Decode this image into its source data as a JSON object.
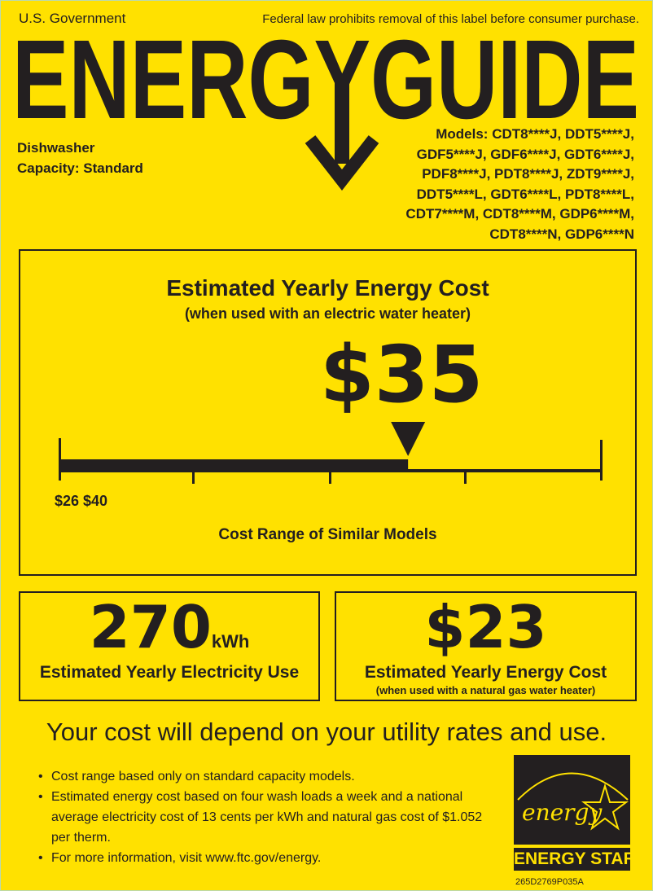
{
  "header": {
    "left": "U.S. Government",
    "right": "Federal law prohibits removal of this label before consumer purchase.",
    "title": "ENERGYGUIDE"
  },
  "product": {
    "type": "Dishwasher",
    "capacity": "Capacity: Standard"
  },
  "models": [
    "Models: CDT8****J, DDT5****J,",
    "GDF5****J, GDF6****J, GDT6****J,",
    "PDF8****J, PDT8****J, ZDT9****J,",
    "DDT5****L, GDT6****L, PDT8****L,",
    "CDT7****M, CDT8****M, GDP6****M,",
    "CDT8****N, GDP6****N"
  ],
  "main_cost": {
    "title": "Estimated Yearly Energy Cost",
    "subtitle": "(when used with an electric water heater)",
    "value": "$35",
    "range_labels": "$26 $40",
    "range_caption": "Cost Range of Similar Models",
    "range_min": 26,
    "range_max": 40,
    "marker_value": 35
  },
  "electricity": {
    "value": "270",
    "unit": "kWh",
    "label": "Estimated Yearly Electricity Use"
  },
  "gas_cost": {
    "value": "$23",
    "label": "Estimated Yearly Energy Cost",
    "sublabel": "(when used with a natural gas water heater)"
  },
  "notice": "Your cost will depend on your utility rates and use.",
  "bullets": [
    "Cost range based only on standard capacity models.",
    "Estimated energy cost based on four wash loads a week and a national average electricity cost of 13 cents per kWh and natural gas cost of $1.052 per therm.",
    "For more information, visit www.ftc.gov/energy."
  ],
  "logo": {
    "script": "energy",
    "label": "ENERGY STAR"
  },
  "code": "265D2769P035A",
  "colors": {
    "background": "#FFE100",
    "ink": "#231f20"
  }
}
